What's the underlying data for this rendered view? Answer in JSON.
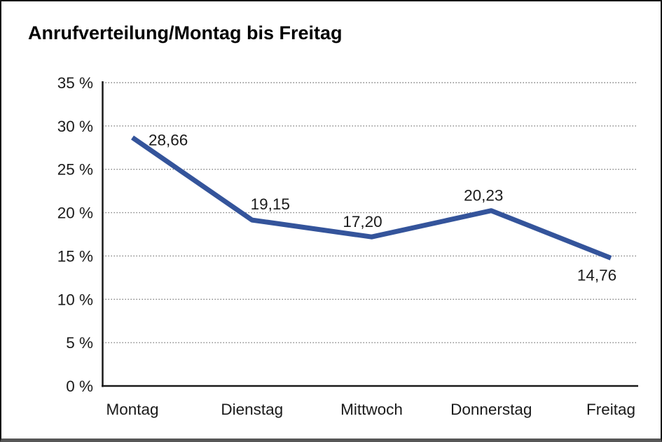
{
  "title": "Anrufverteilung/Montag bis Freitag",
  "colors": {
    "line": "#34549B",
    "grid": "#7a7a7a",
    "axis": "#1a1a1a",
    "label_text": "#1a1a1a",
    "background": "#ffffff",
    "frame": "#161616"
  },
  "chart_data": {
    "type": "line",
    "title": "Anrufverteilung/Montag bis Freitag",
    "categories": [
      "Montag",
      "Dienstag",
      "Mittwoch",
      "Donnerstag",
      "Freitag"
    ],
    "values": [
      28.66,
      19.15,
      17.2,
      20.23,
      14.76
    ],
    "value_labels": [
      "28,66",
      "19,15",
      "17,20",
      "20,23",
      "14,76"
    ],
    "xlabel": "",
    "ylabel": "",
    "ylim": [
      0,
      35
    ],
    "ytick_step": 5,
    "ytick_labels": [
      "0 %",
      "5 %",
      "10 %",
      "15 %",
      "20 %",
      "25 %",
      "30 %",
      "35 %"
    ],
    "grid": "horizontal-dotted",
    "legend_position": "none",
    "decimal_separator": ","
  }
}
